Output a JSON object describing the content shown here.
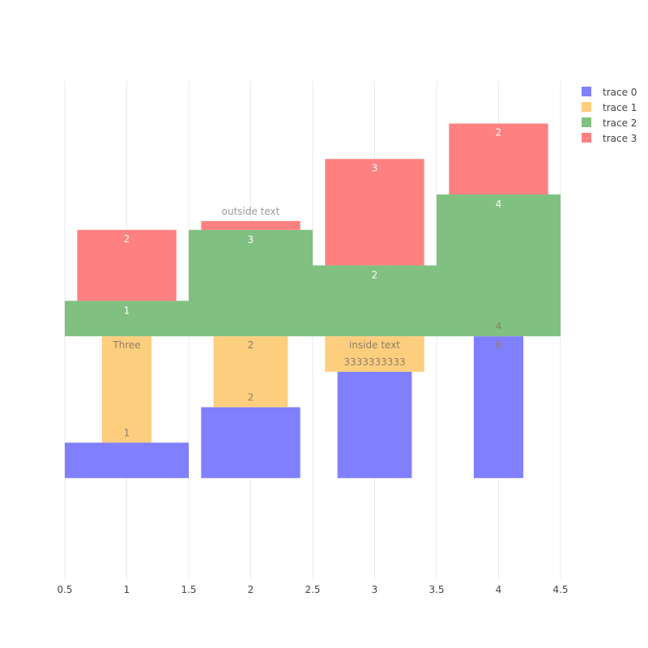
{
  "chart_data": {
    "type": "bar",
    "orientation": "vertical",
    "barmode": "stack",
    "xlim": [
      0.5,
      4.5
    ],
    "ylim": [
      -2.85,
      11.2
    ],
    "x_ticks": [
      0.5,
      1,
      1.5,
      2,
      2.5,
      3,
      3.5,
      4,
      4.5
    ],
    "x_tick_labels": [
      "0.5",
      "1",
      "1.5",
      "2",
      "2.5",
      "3",
      "3.5",
      "4",
      "4.5"
    ],
    "grid": true,
    "legend": {
      "placement": "top-right",
      "entries": [
        "trace 0",
        "trace 1",
        "trace 2",
        "trace 3"
      ]
    },
    "series": [
      {
        "name": "trace 0",
        "color": "#8080ff",
        "x": [
          1,
          2,
          3,
          4
        ],
        "width": [
          1,
          0.8,
          0.6,
          0.4
        ],
        "base": [
          0,
          0,
          0,
          0
        ],
        "values": [
          1,
          2,
          3,
          4
        ],
        "labels": [
          "",
          "",
          "",
          ""
        ],
        "label_position": "inside"
      },
      {
        "name": "trace 1",
        "color": "#fece7f",
        "x": [
          1,
          2,
          3,
          4
        ],
        "width": [
          0.4,
          0.6,
          0.8,
          1
        ],
        "base": [
          1,
          2,
          3,
          4
        ],
        "values": [
          3,
          2,
          1,
          0
        ],
        "labels": [
          "Three",
          "2",
          "inside text",
          "0"
        ],
        "label_position": "inside"
      },
      {
        "name": "trace 2",
        "color": "#80c080",
        "x": [
          1,
          2,
          3,
          4
        ],
        "width": [
          1,
          1,
          1,
          1
        ],
        "base": [
          4,
          4,
          4,
          4
        ],
        "values": [
          1,
          3,
          2,
          4
        ],
        "labels": [
          "1",
          "3",
          "2",
          "4"
        ],
        "label_position": "inside"
      },
      {
        "name": "trace 3",
        "color": "#ff8080",
        "x": [
          1,
          2,
          3,
          4
        ],
        "width": [
          0.8,
          0.8,
          0.8,
          0.8
        ],
        "base": [
          5,
          7,
          6,
          8
        ],
        "values": [
          2,
          0.25,
          3,
          2
        ],
        "labels": [
          "2",
          "outside text",
          "3",
          "2"
        ],
        "label_position": "inside_except_outside_for_x2"
      }
    ],
    "extra_labels": [
      {
        "text": "1",
        "x": 1,
        "y": 1,
        "color": "#8a7f67"
      },
      {
        "text": "2",
        "x": 2,
        "y": 2,
        "color": "#8a7f67"
      },
      {
        "text": "3333333333",
        "x": 3,
        "y": 3,
        "color": "#8a7f67"
      },
      {
        "text": "4",
        "x": 4,
        "y": 4,
        "color": "#8a7f67"
      }
    ]
  }
}
